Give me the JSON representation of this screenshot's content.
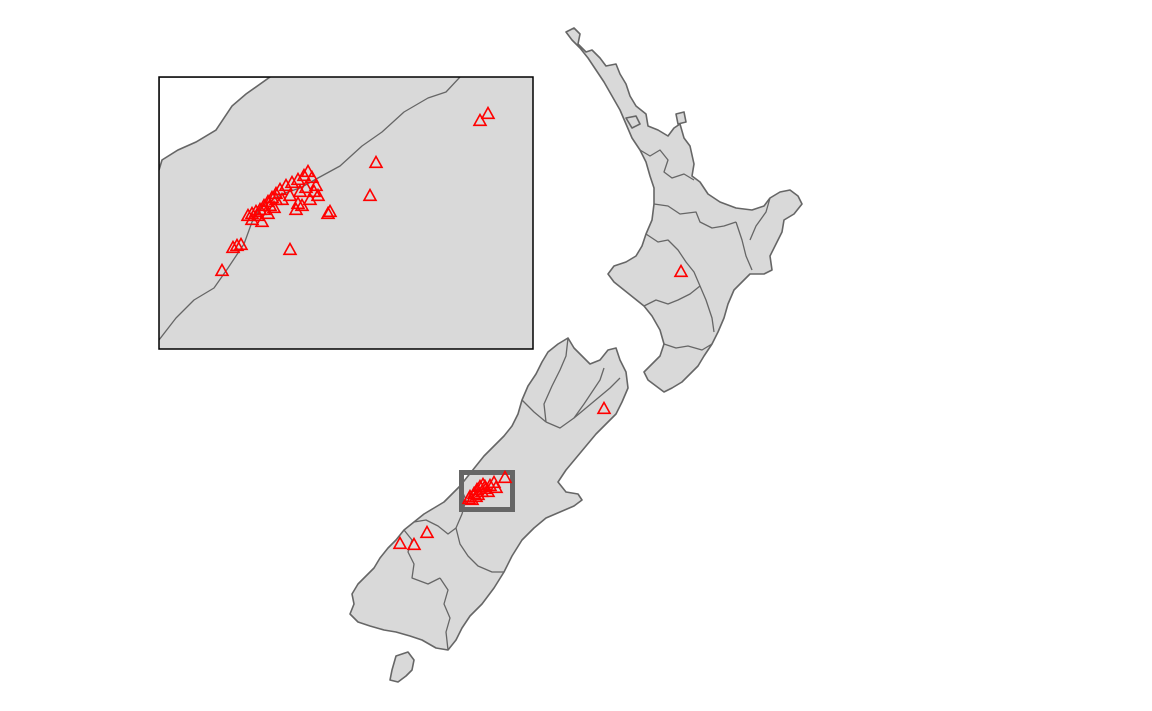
{
  "map": {
    "land_color": "#d9d9d9",
    "border_color": "#666666",
    "marker_color": "#ff0000",
    "marker_shape": "open-triangle",
    "highlight_box_color": "#666666",
    "inset_position": "top-left"
  }
}
